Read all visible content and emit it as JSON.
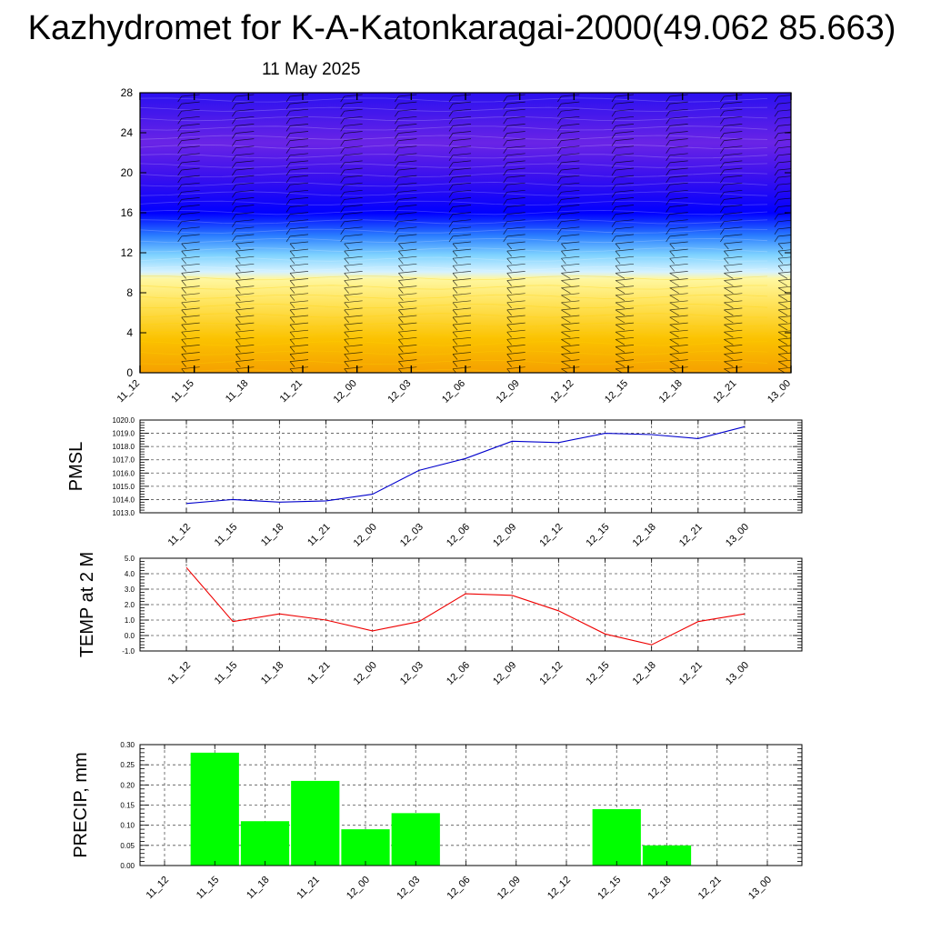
{
  "title": "Kazhydromet for K-A-Katonkaragai-2000(49.062 85.663)",
  "subtitle": "11 May 2025",
  "colors": {
    "pmsl_line": "#0000cc",
    "temp_line": "#ee0000",
    "precip_bar": "#00ff00",
    "contour_low": "#f5a000",
    "contour_mid": "#ffff99",
    "contour_cold": "#0000ff",
    "contour_top": "#8a2be2"
  },
  "chart_data": [
    {
      "type": "heatmap",
      "title": "",
      "xlabel": "",
      "ylabel": "",
      "x": [
        "11_12",
        "11_15",
        "11_18",
        "11_21",
        "12_00",
        "12_03",
        "12_06",
        "12_09",
        "12_12",
        "12_15",
        "12_18",
        "12_21",
        "13_00"
      ],
      "yticks": [
        0,
        4,
        8,
        12,
        16,
        20,
        24,
        28
      ],
      "ylim": [
        0,
        28
      ],
      "bands": [
        {
          "from": 0,
          "to": 10,
          "fill": "warm orange-to-yellow"
        },
        {
          "from": 10,
          "to": 16,
          "fill": "light-to-deep blue"
        },
        {
          "from": 16,
          "to": 28,
          "fill": "blue-violet"
        }
      ],
      "overlay": "wind barbs"
    },
    {
      "type": "line",
      "ylabel": "PMSL",
      "x": [
        "11_12",
        "11_15",
        "11_18",
        "11_21",
        "12_00",
        "12_03",
        "12_06",
        "12_09",
        "12_12",
        "12_15",
        "12_18",
        "12_21",
        "13_00"
      ],
      "yticks": [
        "1013.0",
        "1014.0",
        "1015.0",
        "1016.0",
        "1017.0",
        "1018.0",
        "1019.0",
        "1020.0"
      ],
      "ylim": [
        1013,
        1020
      ],
      "values": [
        1013.7,
        1014.0,
        1013.8,
        1013.9,
        1014.4,
        1016.2,
        1017.1,
        1018.4,
        1018.3,
        1019.0,
        1018.9,
        1018.6,
        1019.5
      ],
      "grid": true
    },
    {
      "type": "line",
      "ylabel": "TEMP at 2 M",
      "x": [
        "11_12",
        "11_15",
        "11_18",
        "11_21",
        "12_00",
        "12_03",
        "12_06",
        "12_09",
        "12_12",
        "12_15",
        "12_18",
        "12_21",
        "13_00"
      ],
      "yticks": [
        "-1.0",
        "0.0",
        "1.0",
        "2.0",
        "3.0",
        "4.0",
        "5.0"
      ],
      "ylim": [
        -1,
        5
      ],
      "values": [
        4.4,
        0.9,
        1.4,
        1.0,
        0.3,
        0.9,
        2.7,
        2.6,
        1.6,
        0.1,
        -0.6,
        0.9,
        1.4
      ],
      "grid": true
    },
    {
      "type": "bar",
      "ylabel": "PRECIP, mm",
      "categories": [
        "11_12",
        "11_15",
        "11_18",
        "11_21",
        "12_00",
        "12_03",
        "12_06",
        "12_09",
        "12_12",
        "12_15",
        "12_18",
        "12_21",
        "13_00"
      ],
      "yticks": [
        "0.00",
        "0.05",
        "0.10",
        "0.15",
        "0.20",
        "0.25",
        "0.30"
      ],
      "ylim": [
        0,
        0.3
      ],
      "values": [
        0,
        0.28,
        0.11,
        0.21,
        0.09,
        0.13,
        0,
        0,
        0,
        0.14,
        0.05,
        0,
        0
      ],
      "grid": true
    }
  ]
}
